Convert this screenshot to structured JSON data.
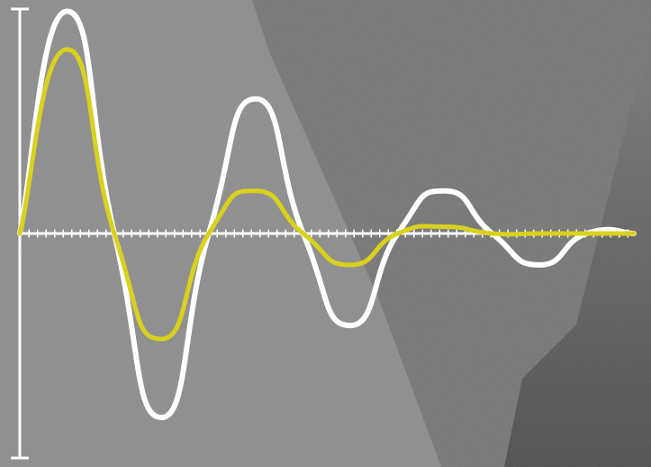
{
  "chart_data": {
    "type": "line",
    "x": [
      0,
      1,
      2,
      3,
      4,
      5,
      6,
      7,
      8,
      9,
      10,
      11,
      12,
      13
    ],
    "xlim": [
      0,
      13
    ],
    "ylim": [
      -1,
      1
    ],
    "series": [
      {
        "color": "#ffffff",
        "values": [
          0,
          0.99,
          0,
          -0.82,
          0,
          0.6,
          0,
          -0.41,
          0,
          0.19,
          0,
          -0.14,
          0,
          0
        ]
      },
      {
        "color": "#d8d21e",
        "values": [
          0,
          0.82,
          0,
          -0.47,
          0,
          0.19,
          0,
          -0.14,
          0,
          0.03,
          0,
          0,
          0,
          0
        ]
      }
    ]
  }
}
